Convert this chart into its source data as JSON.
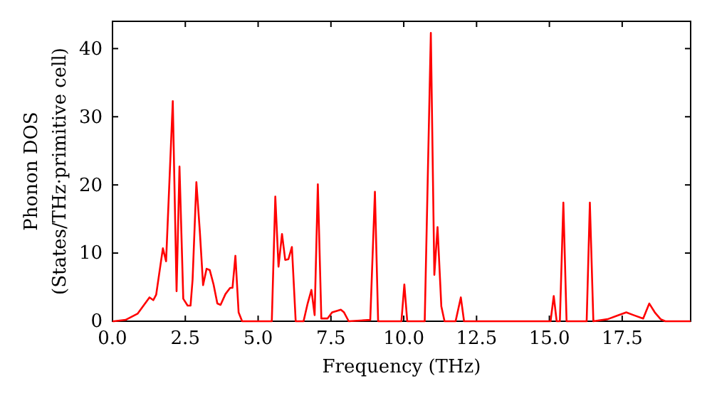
{
  "chart_data": {
    "type": "line",
    "xlabel": "Frequency (THz)",
    "ylabel": "Phonon DOS\n(States/THz·primitive cell)",
    "xlim": [
      0,
      19.85
    ],
    "ylim": [
      0,
      44
    ],
    "xticks": [
      {
        "value": 0,
        "label": "0.0"
      },
      {
        "value": 2.5,
        "label": "2.5"
      },
      {
        "value": 5,
        "label": "5.0"
      },
      {
        "value": 7.5,
        "label": "7.5"
      },
      {
        "value": 10,
        "label": "10.0"
      },
      {
        "value": 12.5,
        "label": "12.5"
      },
      {
        "value": 15,
        "label": "15.0"
      },
      {
        "value": 17.5,
        "label": "17.5"
      }
    ],
    "yticks": [
      0,
      10,
      20,
      30,
      40
    ],
    "series": [
      {
        "color": "#ff0000",
        "x": [
          0,
          0.05,
          0.45,
          0.86,
          1.27,
          1.4,
          1.5,
          1.73,
          1.84,
          2.07,
          2.2,
          2.3,
          2.43,
          2.58,
          2.68,
          2.75,
          2.88,
          3.0,
          3.11,
          3.23,
          3.34,
          3.47,
          3.6,
          3.71,
          3.88,
          4.04,
          4.12,
          4.22,
          4.33,
          4.45,
          5.47,
          5.59,
          5.7,
          5.82,
          5.93,
          6.04,
          6.16,
          6.29,
          6.56,
          6.7,
          6.83,
          6.94,
          7.05,
          7.17,
          7.38,
          7.54,
          7.84,
          7.95,
          8.11,
          8.85,
          9.01,
          9.12,
          9.92,
          10.02,
          10.12,
          10.72,
          10.93,
          11.05,
          11.16,
          11.29,
          11.4,
          11.78,
          11.96,
          12.07,
          15.04,
          15.15,
          15.25,
          15.36,
          15.48,
          15.59,
          16.28,
          16.39,
          16.51,
          17.0,
          17.32,
          17.64,
          17.89,
          18.22,
          18.43,
          18.62,
          18.82,
          18.98,
          19.85
        ],
        "values": [
          0,
          0,
          0.2,
          1.1,
          3.5,
          3.1,
          3.9,
          10.7,
          8.8,
          32.3,
          4.4,
          22.7,
          3.3,
          2.3,
          2.3,
          6.1,
          20.4,
          13.1,
          5.3,
          7.7,
          7.5,
          5.4,
          2.6,
          2.4,
          4.0,
          4.9,
          4.9,
          9.6,
          1.3,
          0,
          0,
          18.3,
          8.0,
          12.8,
          9.0,
          9.1,
          10.9,
          0,
          0,
          2.6,
          4.6,
          0.9,
          20.1,
          0.4,
          0.4,
          1.3,
          1.7,
          1.3,
          0,
          0.2,
          19.0,
          0,
          0,
          5.4,
          0,
          0,
          42.3,
          6.8,
          13.8,
          2.2,
          0,
          0,
          3.5,
          0,
          0,
          3.7,
          0,
          0,
          17.4,
          0,
          0,
          17.4,
          0,
          0.3,
          0.8,
          1.3,
          0.9,
          0.4,
          2.6,
          1.3,
          0.3,
          0,
          0
        ]
      }
    ]
  }
}
